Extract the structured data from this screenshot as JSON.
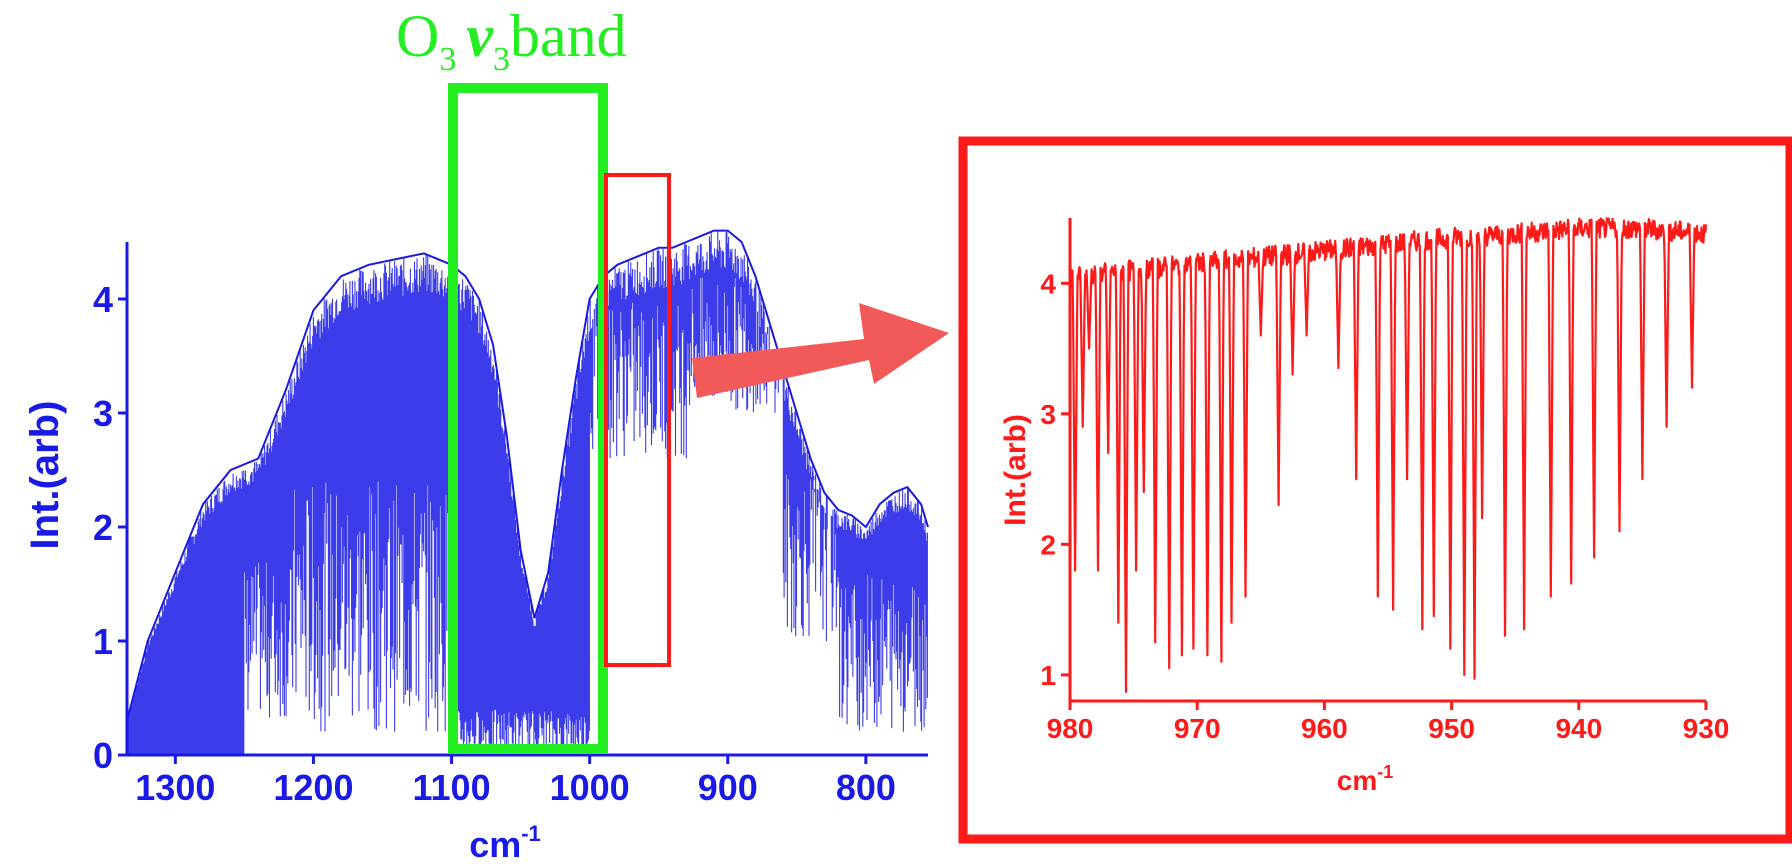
{
  "annotation": {
    "band_label": {
      "species": "O",
      "species_sub": "3",
      "mode": "ν",
      "mode_sub": "3",
      "suffix": "band"
    },
    "colors": {
      "band_box": "#22ee22",
      "zoom_box": "#ff1a1a",
      "arrow": "#f25a5a"
    }
  },
  "chart_data": [
    {
      "type": "line",
      "panel": "overview",
      "color": "#1a1ae6",
      "title": "",
      "xlabel": "cm",
      "xlabel_sup": "-1",
      "ylabel": "Int.(arb)",
      "xlim": [
        1335,
        755
      ],
      "ylim": [
        0,
        4.5
      ],
      "x_reversed": true,
      "x_ticks": [
        1300,
        1200,
        1100,
        1000,
        900,
        800
      ],
      "y_ticks": [
        0,
        1,
        2,
        3,
        4
      ],
      "grid": false,
      "envelope": {
        "x": [
          1335,
          1320,
          1300,
          1280,
          1260,
          1240,
          1220,
          1200,
          1180,
          1160,
          1140,
          1120,
          1100,
          1090,
          1080,
          1070,
          1060,
          1050,
          1040,
          1030,
          1020,
          1010,
          1000,
          990,
          980,
          970,
          960,
          950,
          940,
          930,
          920,
          910,
          900,
          890,
          880,
          870,
          860,
          850,
          840,
          830,
          820,
          810,
          800,
          790,
          780,
          770,
          760,
          755
        ],
        "y": [
          0.3,
          1.0,
          1.6,
          2.2,
          2.5,
          2.6,
          3.2,
          3.9,
          4.2,
          4.3,
          4.35,
          4.4,
          4.3,
          4.2,
          4.0,
          3.6,
          2.8,
          1.8,
          1.2,
          1.6,
          2.5,
          3.3,
          4.0,
          4.2,
          4.3,
          4.35,
          4.4,
          4.45,
          4.45,
          4.5,
          4.55,
          4.6,
          4.6,
          4.5,
          4.2,
          3.8,
          3.4,
          3.0,
          2.6,
          2.3,
          2.15,
          2.1,
          2.0,
          2.2,
          2.3,
          2.35,
          2.2,
          2.0
        ]
      }
    },
    {
      "type": "line",
      "panel": "zoom",
      "color": "#ff1a1a",
      "title": "",
      "xlabel": "cm",
      "xlabel_sup": "-1",
      "ylabel": "Int.(arb)",
      "xlim": [
        980,
        930
      ],
      "ylim": [
        0.8,
        4.5
      ],
      "x_reversed": true,
      "x_ticks": [
        980,
        970,
        960,
        950,
        940,
        930
      ],
      "y_ticks": [
        1,
        2,
        3,
        4
      ],
      "grid": false,
      "baseline": {
        "x": [
          980,
          975,
          970,
          965,
          960,
          955,
          950,
          945,
          940,
          935,
          930
        ],
        "y": [
          4.05,
          4.1,
          4.15,
          4.2,
          4.25,
          4.3,
          4.35,
          4.38,
          4.42,
          4.42,
          4.38
        ]
      },
      "absorption_lines": {
        "x": [
          979.6,
          979.0,
          978.5,
          977.8,
          977.0,
          976.2,
          975.6,
          974.8,
          974.2,
          973.3,
          972.2,
          971.2,
          970.3,
          969.2,
          968.1,
          967.3,
          966.2,
          965.0,
          963.6,
          962.5,
          961.4,
          958.9,
          957.5,
          955.8,
          954.6,
          953.5,
          952.3,
          951.4,
          950.1,
          949.0,
          948.2,
          947.6,
          945.8,
          944.3,
          942.2,
          940.6,
          938.8,
          936.8,
          935.0,
          933.1,
          931.1
        ],
        "min": [
          1.8,
          2.9,
          3.5,
          1.8,
          2.7,
          1.4,
          0.87,
          1.8,
          2.4,
          1.25,
          1.05,
          1.15,
          1.2,
          1.15,
          1.1,
          1.4,
          1.6,
          3.6,
          2.3,
          3.3,
          3.6,
          3.35,
          2.5,
          1.6,
          1.5,
          2.5,
          1.35,
          1.45,
          1.2,
          1.0,
          0.97,
          2.2,
          1.3,
          1.35,
          1.6,
          1.7,
          1.9,
          2.1,
          2.5,
          2.9,
          3.2
        ]
      }
    }
  ]
}
